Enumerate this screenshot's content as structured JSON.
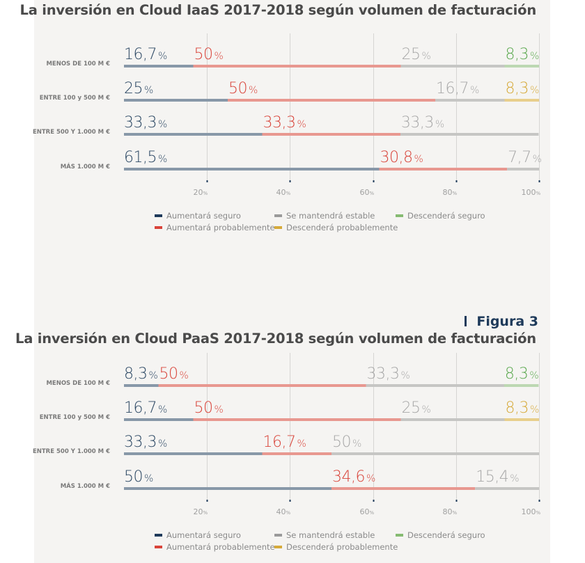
{
  "chart_data": [
    {
      "type": "bar",
      "stacked": true,
      "orientation": "horizontal",
      "title": "La inversión en Cloud IaaS 2017-2018 según volumen de facturación",
      "categories": [
        "MENOS DE 100 M €",
        "ENTRE 100 y 500 M €",
        "ENTRE 500 Y 1.000 M €",
        "MÁS 1.000 M €"
      ],
      "series": [
        {
          "name": "Aumentará seguro",
          "values": [
            16.7,
            25,
            33.3,
            61.5
          ],
          "labels": [
            "16,7",
            "25",
            "33,3",
            "61,5"
          ]
        },
        {
          "name": "Aumentará probablemente",
          "values": [
            50,
            50,
            33.3,
            30.8
          ],
          "labels": [
            "50",
            "50",
            "33,3",
            "30,8"
          ]
        },
        {
          "name": "Se mantendrá estable",
          "values": [
            25,
            16.7,
            33.3,
            7.7
          ],
          "labels": [
            "25",
            "16,7",
            "33,3",
            "7,7"
          ]
        },
        {
          "name": "Descenderá probablemente",
          "values": [
            0,
            8.3,
            0,
            0
          ],
          "labels": [
            "",
            "8,3",
            "",
            ""
          ]
        },
        {
          "name": "Descenderá seguro",
          "values": [
            8.3,
            0,
            0,
            0
          ],
          "labels": [
            "8,3",
            "",
            "",
            ""
          ]
        }
      ],
      "xticks": [
        "20",
        "40",
        "60",
        "80",
        "100"
      ],
      "tick_suffix": "%",
      "xlim": [
        0,
        100
      ],
      "grid": true,
      "legend_position": "bottom"
    },
    {
      "type": "bar",
      "stacked": true,
      "orientation": "horizontal",
      "figure_label": "Figura 3",
      "title": "La inversión en Cloud PaaS 2017-2018 según volumen de facturación",
      "categories": [
        "MENOS DE 100 M €",
        "ENTRE 100 y 500 M €",
        "ENTRE 500 Y 1.000 M €",
        "MÁS 1.000 M €"
      ],
      "series": [
        {
          "name": "Aumentará seguro",
          "values": [
            8.3,
            16.7,
            33.3,
            50
          ],
          "labels": [
            "8,3",
            "16,7",
            "33,3",
            "50"
          ]
        },
        {
          "name": "Aumentará probablemente",
          "values": [
            50,
            50,
            16.7,
            34.6
          ],
          "labels": [
            "50",
            "50",
            "16,7",
            "34,6"
          ]
        },
        {
          "name": "Se mantendrá estable",
          "values": [
            33.3,
            25,
            50,
            15.4
          ],
          "labels": [
            "33,3",
            "25",
            "50",
            "15,4"
          ]
        },
        {
          "name": "Descenderá probablemente",
          "values": [
            0,
            8.3,
            0,
            0
          ],
          "labels": [
            "",
            "8,3",
            "",
            ""
          ]
        },
        {
          "name": "Descenderá seguro",
          "values": [
            8.3,
            0,
            0,
            0
          ],
          "labels": [
            "8,3",
            "",
            "",
            ""
          ]
        }
      ],
      "xticks": [
        "20",
        "40",
        "60",
        "80",
        "100"
      ],
      "tick_suffix": "%",
      "xlim": [
        0,
        100
      ],
      "grid": true,
      "legend_position": "bottom"
    }
  ],
  "pct_symbol": "%",
  "colors": {
    "Aumentará seguro": {
      "bar": "#8898a8",
      "text": "#2b4763",
      "legend": "#1e3a5a"
    },
    "Aumentará probablemente": {
      "bar": "#e89890",
      "text": "#d9443a",
      "legend": "#d9443a"
    },
    "Se mantendrá estable": {
      "bar": "#c6c6c4",
      "text": "#a8a8a8",
      "legend": "#9a9a9a"
    },
    "Descenderá probablemente": {
      "bar": "#e8cf8c",
      "text": "#d6aa3a",
      "legend": "#d6aa3a"
    },
    "Descenderá seguro": {
      "bar": "#bcd8b2",
      "text": "#5aa84e",
      "legend": "#86bb72"
    }
  },
  "legend": [
    {
      "label": "Aumentará seguro",
      "key": "Aumentará seguro"
    },
    {
      "label": "Se mantendrá estable",
      "key": "Se mantendrá estable"
    },
    {
      "label": "Descenderá seguro",
      "key": "Descenderá seguro"
    },
    {
      "label": "Aumentará probablemente",
      "key": "Aumentará probablemente"
    },
    {
      "label": "Descenderá probablemente",
      "key": "Descenderá probablemente"
    }
  ]
}
